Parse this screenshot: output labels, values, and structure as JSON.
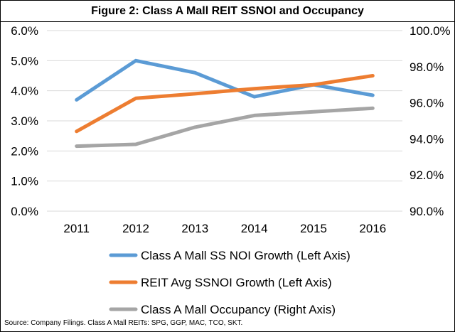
{
  "chart_data": {
    "type": "line",
    "title": "Figure 2: Class A Mall REIT SSNOI and Occupancy",
    "x": [
      "2011",
      "2012",
      "2013",
      "2014",
      "2015",
      "2016"
    ],
    "left_axis": {
      "ylim": [
        0.0,
        6.0
      ],
      "ticks": [
        "0.0%",
        "1.0%",
        "2.0%",
        "3.0%",
        "4.0%",
        "5.0%",
        "6.0%"
      ]
    },
    "right_axis": {
      "ylim": [
        90.0,
        100.0
      ],
      "ticks": [
        "90.0%",
        "92.0%",
        "94.0%",
        "96.0%",
        "98.0%",
        "100.0%"
      ]
    },
    "grid": "horizontal",
    "legend_position": "bottom",
    "series": [
      {
        "name": "Class A Mall SS NOI Growth (Left Axis)",
        "axis": "left",
        "color": "#5b9bd5",
        "values": [
          3.7,
          5.0,
          4.6,
          3.8,
          4.2,
          3.85
        ]
      },
      {
        "name": "REIT Avg SSNOI Growth (Left Axis)",
        "axis": "left",
        "color": "#ed7d31",
        "values": [
          2.65,
          3.75,
          3.9,
          4.07,
          4.2,
          4.5
        ]
      },
      {
        "name": "Class A Mall Occupancy (Right Axis)",
        "axis": "right",
        "color": "#a5a5a5",
        "values": [
          93.6,
          93.7,
          94.65,
          95.3,
          95.5,
          95.7
        ]
      }
    ],
    "source": "Source: Company Filings.  Class A Mall REITs: SPG, GGP, MAC, TCO, SKT."
  }
}
